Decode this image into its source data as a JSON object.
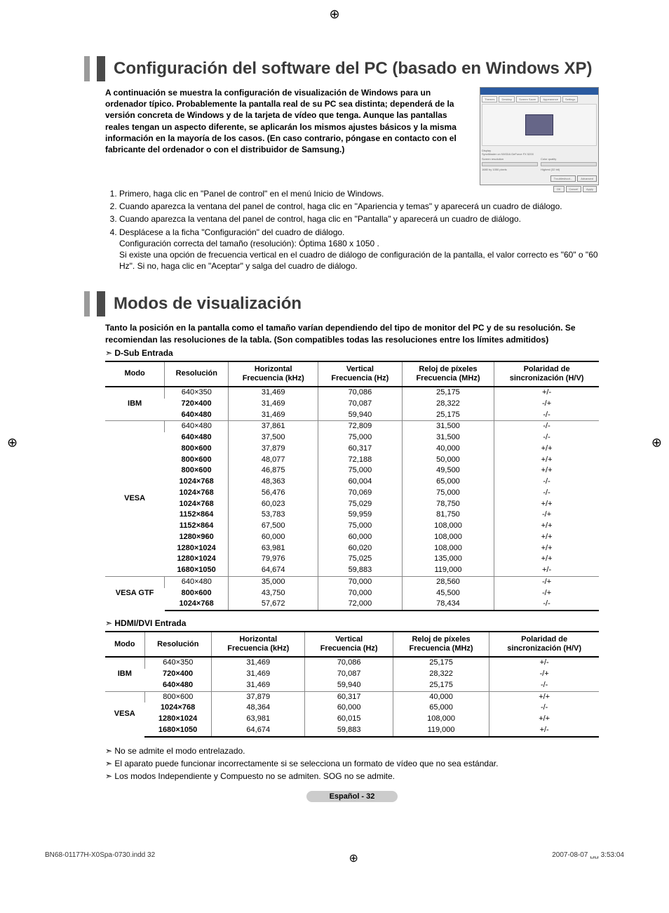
{
  "title1": "Configuración del software del PC (basado en Windows XP)",
  "intro1": "A continuación se muestra la configuración de visualización de Windows para un ordenador típico. Probablemente la pantalla real de su PC sea distinta; dependerá de la versión concreta de Windows y de la tarjeta de vídeo que tenga. Aunque las pantallas reales tengan un aspecto diferente, se aplicarán los mismos ajustes básicos y la misma información en la mayoría de los casos. (En caso contrario, póngase en contacto con el fabricante del ordenador o con el distribuidor de Samsung.)",
  "steps": [
    "Primero, haga clic en \"Panel de control\" en el menú Inicio de Windows.",
    "Cuando aparezca la ventana del panel de control, haga clic en \"Apariencia y temas\" y aparecerá un cuadro de diálogo.",
    "Cuando aparezca la ventana del panel de control, haga clic en \"Pantalla\" y aparecerá un cuadro de diálogo.",
    "Desplácese a la ficha \"Configuración\" del cuadro de diálogo."
  ],
  "step4_sub1": "Configuración correcta del tamaño (resolución): Óptima 1680 x 1050 .",
  "step4_sub2": "Si existe una opción de frecuencia vertical en el cuadro de diálogo de configuración de la pantalla, el valor correcto es \"60\" o \"60 Hz\". Si no, haga clic en \"Aceptar\" y salga del cuadro de diálogo.",
  "title2": "Modos de visualización",
  "intro2": "Tanto la posición en la pantalla como el tamaño varían dependiendo del tipo de monitor del PC y de su resolución. Se recomiendan las resoluciones de la tabla. (Son compatibles todas las resoluciones entre los límites admitidos)",
  "label_dsub": "D-Sub Entrada",
  "label_hdmi": "HDMI/DVI Entrada",
  "headers": {
    "modo": "Modo",
    "res": "Resolución",
    "h": "Horizontal",
    "h2": "Frecuencia (kHz)",
    "v": "Vertical",
    "v2": "Frecuencia (Hz)",
    "clk": "Reloj de píxeles",
    "clk2": "Frecuencia (MHz)",
    "pol": "Polaridad de",
    "pol2": "sincronización (H/V)"
  },
  "dsub": [
    {
      "mode": "IBM",
      "rows": [
        [
          "640×350",
          "31,469",
          "70,086",
          "25,175",
          "+/-"
        ],
        [
          "720×400",
          "31,469",
          "70,087",
          "28,322",
          "-/+"
        ],
        [
          "640×480",
          "31,469",
          "59,940",
          "25,175",
          "-/-"
        ]
      ]
    },
    {
      "mode": "VESA",
      "rows": [
        [
          "640×480",
          "37,861",
          "72,809",
          "31,500",
          "-/-"
        ],
        [
          "640×480",
          "37,500",
          "75,000",
          "31,500",
          "-/-"
        ],
        [
          "800×600",
          "37,879",
          "60,317",
          "40,000",
          "+/+"
        ],
        [
          "800×600",
          "48,077",
          "72,188",
          "50,000",
          "+/+"
        ],
        [
          "800×600",
          "46,875",
          "75,000",
          "49,500",
          "+/+"
        ],
        [
          "1024×768",
          "48,363",
          "60,004",
          "65,000",
          "-/-"
        ],
        [
          "1024×768",
          "56,476",
          "70,069",
          "75,000",
          "-/-"
        ],
        [
          "1024×768",
          "60,023",
          "75,029",
          "78,750",
          "+/+"
        ],
        [
          "1152×864",
          "53,783",
          "59,959",
          "81,750",
          "-/+"
        ],
        [
          "1152×864",
          "67,500",
          "75,000",
          "108,000",
          "+/+"
        ],
        [
          "1280×960",
          "60,000",
          "60,000",
          "108,000",
          "+/+"
        ],
        [
          "1280×1024",
          "63,981",
          "60,020",
          "108,000",
          "+/+"
        ],
        [
          "1280×1024",
          "79,976",
          "75,025",
          "135,000",
          "+/+"
        ],
        [
          "1680×1050",
          "64,674",
          "59,883",
          "119,000",
          "+/-"
        ]
      ]
    },
    {
      "mode": "VESA GTF",
      "rows": [
        [
          "640×480",
          "35,000",
          "70,000",
          "28,560",
          "-/+"
        ],
        [
          "800×600",
          "43,750",
          "70,000",
          "45,500",
          "-/+"
        ],
        [
          "1024×768",
          "57,672",
          "72,000",
          "78,434",
          "-/-"
        ]
      ]
    }
  ],
  "hdmi": [
    {
      "mode": "IBM",
      "rows": [
        [
          "640×350",
          "31,469",
          "70,086",
          "25,175",
          "+/-"
        ],
        [
          "720×400",
          "31,469",
          "70,087",
          "28,322",
          "-/+"
        ],
        [
          "640×480",
          "31,469",
          "59,940",
          "25,175",
          "-/-"
        ]
      ]
    },
    {
      "mode": "VESA",
      "rows": [
        [
          "800×600",
          "37,879",
          "60,317",
          "40,000",
          "+/+"
        ],
        [
          "1024×768",
          "48,364",
          "60,000",
          "65,000",
          "-/-"
        ],
        [
          "1280×1024",
          "63,981",
          "60,015",
          "108,000",
          "+/+"
        ],
        [
          "1680×1050",
          "64,674",
          "59,883",
          "119,000",
          "+/-"
        ]
      ]
    }
  ],
  "notes": [
    "No se admite el modo entrelazado.",
    "El aparato puede funcionar incorrectamente si se selecciona un formato de vídeo que no sea estándar.",
    "Los modos Independiente y Compuesto no se admiten. SOG no se admite."
  ],
  "page_label": "Español - 32",
  "footer_left": "BN68-01177H-X0Spa-0730.indd   32",
  "footer_right": "2007-08-07   ␣␣ 3:53:04",
  "colors": {
    "heading": "#3a3a3a",
    "bar_light": "#9a9a9a",
    "bar_dark": "#4a4a4a",
    "rule": "#888888",
    "page_label_bg": "#cccccc"
  },
  "fonts": {
    "body_pt": 12,
    "heading_pt": 24,
    "table_pt": 11
  }
}
